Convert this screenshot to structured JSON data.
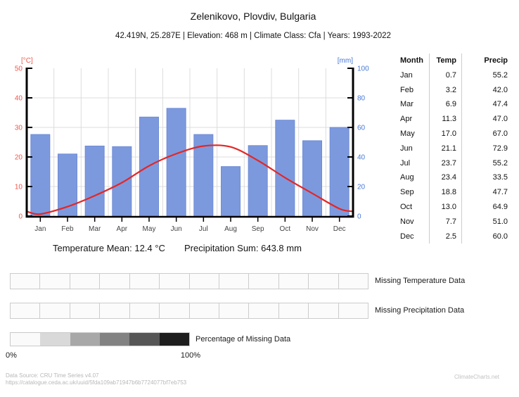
{
  "header": {
    "title": "Zelenikovo, Plovdiv, Bulgaria",
    "subtitle": "42.419N, 25.287E | Elevation: 468 m | Climate Class: Cfa | Years: 1993-2022"
  },
  "chart_data": {
    "type": "bar+line",
    "categories": [
      "Jan",
      "Feb",
      "Mar",
      "Apr",
      "May",
      "Jun",
      "Jul",
      "Aug",
      "Sep",
      "Oct",
      "Nov",
      "Dec"
    ],
    "series": [
      {
        "name": "Temperature",
        "type": "line",
        "axis": "left",
        "unit": "°C",
        "color": "#e32726",
        "values": [
          0.7,
          3.2,
          6.9,
          11.3,
          17.0,
          21.1,
          23.7,
          23.4,
          18.8,
          13.0,
          7.7,
          2.5
        ]
      },
      {
        "name": "Precipitation",
        "type": "bar",
        "axis": "right",
        "unit": "mm",
        "color": "#7d99de",
        "values": [
          55.2,
          42.0,
          47.4,
          47.0,
          67.0,
          72.9,
          55.2,
          33.5,
          47.7,
          64.9,
          51.0,
          60.0
        ]
      }
    ],
    "left_axis": {
      "label": "[°C]",
      "range": [
        0,
        50
      ],
      "ticks": [
        0,
        10,
        20,
        30,
        40,
        50
      ],
      "tick_color": "#f4564e"
    },
    "right_axis": {
      "label": "[mm]",
      "range": [
        0,
        100
      ],
      "ticks": [
        0,
        20,
        40,
        60,
        80,
        100
      ],
      "tick_color": "#4677d8"
    },
    "grid": true,
    "grid_color": "#dcdcdc",
    "month_label_color": "#444444"
  },
  "table": {
    "headers": [
      "Month",
      "Temp",
      "Precip"
    ],
    "rows": [
      [
        "Jan",
        "0.7",
        "55.2"
      ],
      [
        "Feb",
        "3.2",
        "42.0"
      ],
      [
        "Mar",
        "6.9",
        "47.4"
      ],
      [
        "Apr",
        "11.3",
        "47.0"
      ],
      [
        "May",
        "17.0",
        "67.0"
      ],
      [
        "Jun",
        "21.1",
        "72.9"
      ],
      [
        "Jul",
        "23.7",
        "55.2"
      ],
      [
        "Aug",
        "23.4",
        "33.5"
      ],
      [
        "Sep",
        "18.8",
        "47.7"
      ],
      [
        "Oct",
        "13.0",
        "64.9"
      ],
      [
        "Nov",
        "7.7",
        "51.0"
      ],
      [
        "Dec",
        "2.5",
        "60.0"
      ]
    ]
  },
  "stats": {
    "temperature_mean": "Temperature Mean: 12.4 °C",
    "precipitation_sum": "Precipitation Sum: 643.8 mm"
  },
  "missing": {
    "temperature_label": "Missing Temperature Data",
    "precipitation_label": "Missing Precipitation Data",
    "temperature_values": [
      0,
      0,
      0,
      0,
      0,
      0,
      0,
      0,
      0,
      0,
      0,
      0
    ],
    "precipitation_values": [
      0,
      0,
      0,
      0,
      0,
      0,
      0,
      0,
      0,
      0,
      0,
      0
    ],
    "zero_cell_color": "#fbfbfb",
    "legend_label": "Percentage of Missing Data",
    "legend_min": "0%",
    "legend_max": "100%",
    "legend_colors": [
      "#fafafa",
      "#d9d9d9",
      "#a8a8a8",
      "#828282",
      "#565656",
      "#1d1d1d"
    ]
  },
  "footer": {
    "source_line1": "Data Source: CRU Time Series v4.07",
    "source_line2": "https://catalogue.ceda.ac.uk/uuid/5fda109ab71947b6b7724077bf7eb753",
    "brand": "ClimateCharts.net"
  }
}
